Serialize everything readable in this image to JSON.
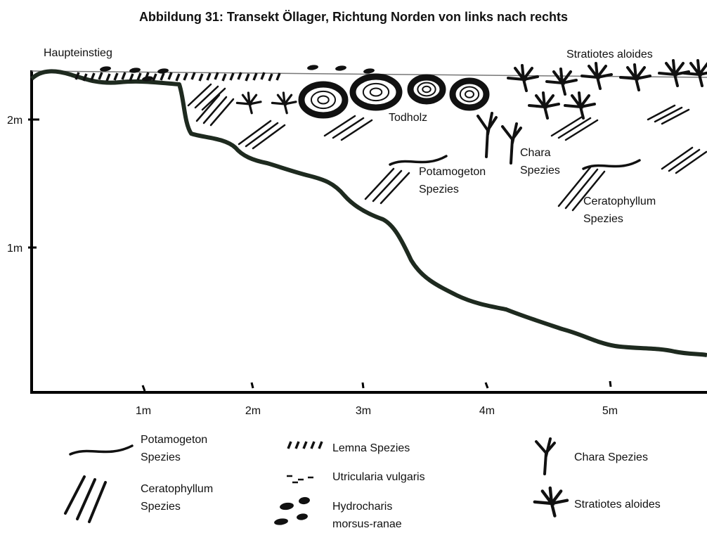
{
  "title": "Abbildung 31: Transekt Öllager, Richtung Norden von links nach rechts",
  "labels": {
    "entry": "Haupteinstieg",
    "stratiotes": "Stratiotes aloides",
    "todholz": "Todholz",
    "chara": [
      "Chara",
      "Spezies"
    ],
    "potamogeton": [
      "Potamogeton",
      "Spezies"
    ],
    "ceratophyllum": [
      "Ceratophyllum",
      "Spezies"
    ]
  },
  "y_axis": [
    "2m",
    "1m"
  ],
  "x_axis": [
    "1m",
    "2m",
    "3m",
    "4m",
    "5m"
  ],
  "legend": [
    {
      "lines": [
        "Potamogeton",
        "Spezies"
      ]
    },
    {
      "lines": [
        "Ceratophyllum",
        "Spezies"
      ]
    },
    {
      "lines": [
        "Lemna Spezies"
      ]
    },
    {
      "lines": [
        "Utricularia vulgaris"
      ]
    },
    {
      "lines": [
        "Hydrocharis",
        "morsus-ranae"
      ]
    },
    {
      "lines": [
        "Chara Spezies"
      ]
    },
    {
      "lines": [
        "Stratiotes aloides"
      ]
    }
  ]
}
